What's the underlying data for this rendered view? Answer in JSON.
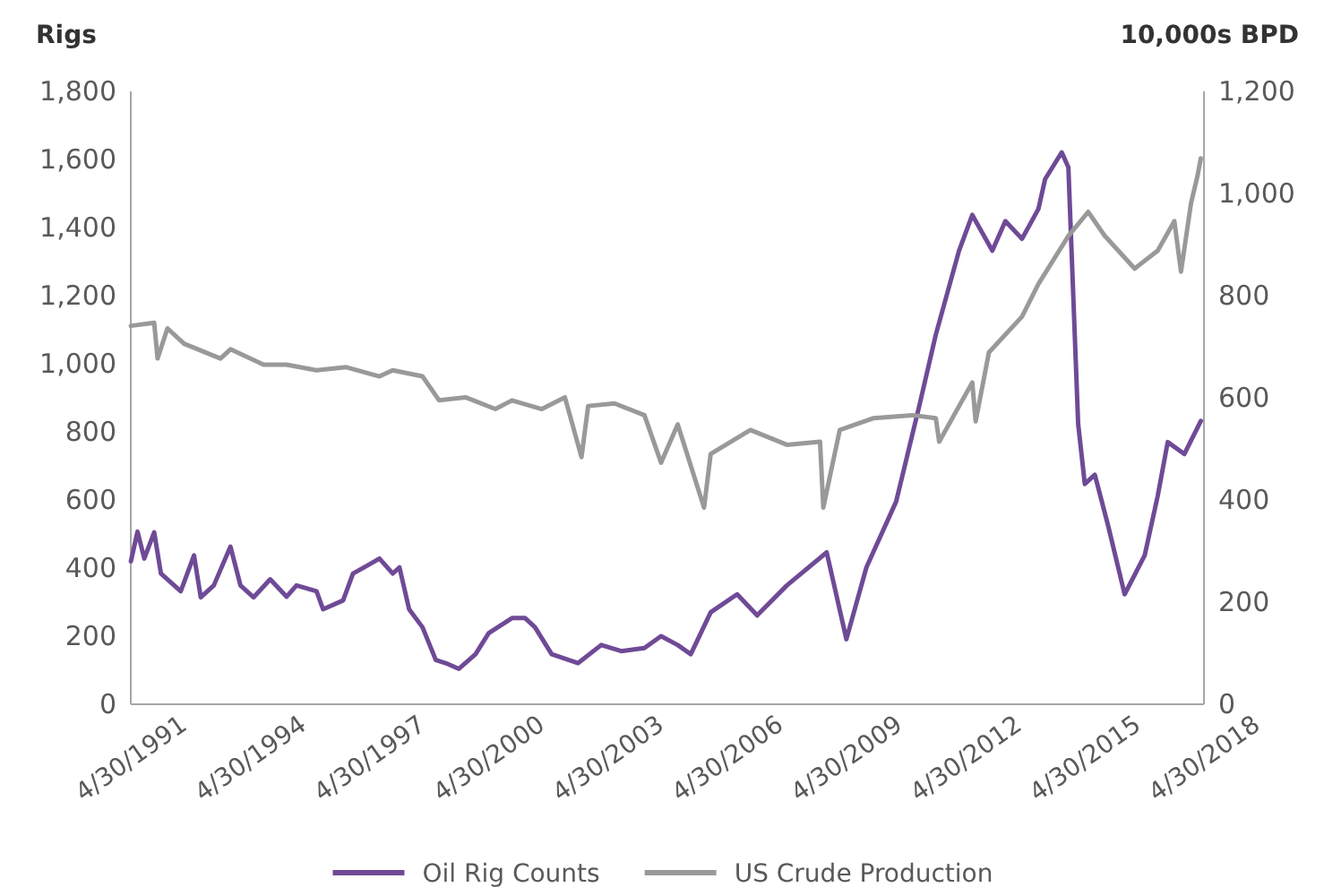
{
  "chart_data": {
    "type": "line",
    "ylabel": "Rigs",
    "y2label": "10,000s BPD",
    "xlim": [
      "1991-04-30",
      "2018-04-30"
    ],
    "xticks": [
      {
        "value": "1991-04-30",
        "label": "4/30/1991"
      },
      {
        "value": "1994-04-30",
        "label": "4/30/1994"
      },
      {
        "value": "1997-04-30",
        "label": "4/30/1997"
      },
      {
        "value": "2000-04-30",
        "label": "4/30/2000"
      },
      {
        "value": "2003-04-30",
        "label": "4/30/2003"
      },
      {
        "value": "2006-04-30",
        "label": "4/30/2006"
      },
      {
        "value": "2009-04-30",
        "label": "4/30/2009"
      },
      {
        "value": "2012-04-30",
        "label": "4/30/2012"
      },
      {
        "value": "2015-04-30",
        "label": "4/30/2015"
      },
      {
        "value": "2018-04-30",
        "label": "4/30/2018"
      }
    ],
    "ylim": [
      0,
      1800
    ],
    "yticks": [
      {
        "value": 0,
        "label": "0"
      },
      {
        "value": 200,
        "label": "200"
      },
      {
        "value": 400,
        "label": "400"
      },
      {
        "value": 600,
        "label": "600"
      },
      {
        "value": 800,
        "label": "800"
      },
      {
        "value": 1000,
        "label": "1,000"
      },
      {
        "value": 1200,
        "label": "1,200"
      },
      {
        "value": 1400,
        "label": "1,400"
      },
      {
        "value": 1600,
        "label": "1,600"
      },
      {
        "value": 1800,
        "label": "1,800"
      }
    ],
    "y2lim": [
      0,
      1200
    ],
    "y2ticks": [
      {
        "value": 0,
        "label": "0"
      },
      {
        "value": 200,
        "label": "200"
      },
      {
        "value": 400,
        "label": "400"
      },
      {
        "value": 600,
        "label": "600"
      },
      {
        "value": 800,
        "label": "800"
      },
      {
        "value": 1000,
        "label": "1,000"
      },
      {
        "value": 1200,
        "label": "1,200"
      }
    ],
    "legend": "bottom",
    "grid": false,
    "marker": "none",
    "line_style": "solid",
    "series": [
      {
        "name": "Oil Rig Counts",
        "color": "#6f4a96",
        "x": [
          "1991-05",
          "1991-07",
          "1991-09",
          "1991-12",
          "1992-02",
          "1992-08",
          "1992-12",
          "1993-02",
          "1993-06",
          "1993-11",
          "1994-02",
          "1994-06",
          "1994-11",
          "1995-04",
          "1995-07",
          "1996-01",
          "1996-03",
          "1996-09",
          "1996-12",
          "1997-05",
          "1997-08",
          "1997-12",
          "1998-02",
          "1998-05",
          "1998-09",
          "1999-01",
          "1999-04",
          "1999-08",
          "2000-01",
          "2000-05",
          "2000-12",
          "2001-04",
          "2001-07",
          "2001-12",
          "2002-08",
          "2003-03",
          "2003-09",
          "2004-04",
          "2004-09",
          "2005-02",
          "2005-06",
          "2005-12",
          "2006-08",
          "2007-02",
          "2007-11",
          "2008-11",
          "2009-05",
          "2009-11",
          "2010-08",
          "2011-03",
          "2011-08",
          "2012-03",
          "2012-07",
          "2013-01",
          "2013-05",
          "2013-10",
          "2014-03",
          "2014-05",
          "2014-10",
          "2014-12",
          "2015-03",
          "2015-05",
          "2015-08",
          "2015-12",
          "2016-05",
          "2016-11",
          "2017-03",
          "2017-06",
          "2017-11",
          "2018-04"
        ],
        "values": [
          420,
          507,
          428,
          505,
          384,
          332,
          437,
          314,
          349,
          463,
          349,
          314,
          367,
          316,
          349,
          332,
          279,
          305,
          384,
          411,
          428,
          384,
          402,
          279,
          226,
          130,
          121,
          104,
          147,
          209,
          253,
          253,
          226,
          147,
          121,
          174,
          156,
          165,
          200,
          174,
          147,
          270,
          323,
          261,
          349,
          446,
          191,
          402,
          595,
          875,
          1086,
          1332,
          1437,
          1332,
          1419,
          1367,
          1455,
          1542,
          1621,
          1577,
          823,
          647,
          674,
          525,
          323,
          437,
          612,
          770,
          735,
          832
        ]
      },
      {
        "name": "US Crude Production",
        "color": "#999999",
        "axis": "y2",
        "x": [
          "1991-05",
          "1991-12",
          "1992-01",
          "1992-04",
          "1992-09",
          "1993-08",
          "1993-11",
          "1994-09",
          "1995-04",
          "1996-01",
          "1996-10",
          "1997-08",
          "1997-12",
          "1998-09",
          "1999-02",
          "1999-10",
          "2000-07",
          "2000-12",
          "2001-09",
          "2002-04",
          "2002-09",
          "2002-11",
          "2003-07",
          "2004-04",
          "2004-09",
          "2005-02",
          "2005-10",
          "2005-12",
          "2006-12",
          "2007-11",
          "2008-09",
          "2008-10",
          "2009-03",
          "2010-01",
          "2011-01",
          "2011-08",
          "2011-09",
          "2012-07",
          "2012-08",
          "2012-12",
          "2013-10",
          "2014-03",
          "2014-12",
          "2015-06",
          "2015-11",
          "2016-08",
          "2017-03",
          "2017-08",
          "2017-10",
          "2018-01",
          "2018-03",
          "2018-04"
        ],
        "values": [
          741,
          747,
          677,
          736,
          706,
          677,
          695,
          665,
          665,
          654,
          660,
          642,
          654,
          642,
          595,
          601,
          578,
          595,
          578,
          601,
          484,
          584,
          589,
          566,
          473,
          548,
          385,
          490,
          537,
          508,
          514,
          385,
          537,
          560,
          566,
          560,
          514,
          630,
          554,
          689,
          759,
          823,
          917,
          964,
          917,
          853,
          888,
          946,
          847,
          981,
          1034,
          1069
        ]
      }
    ]
  }
}
